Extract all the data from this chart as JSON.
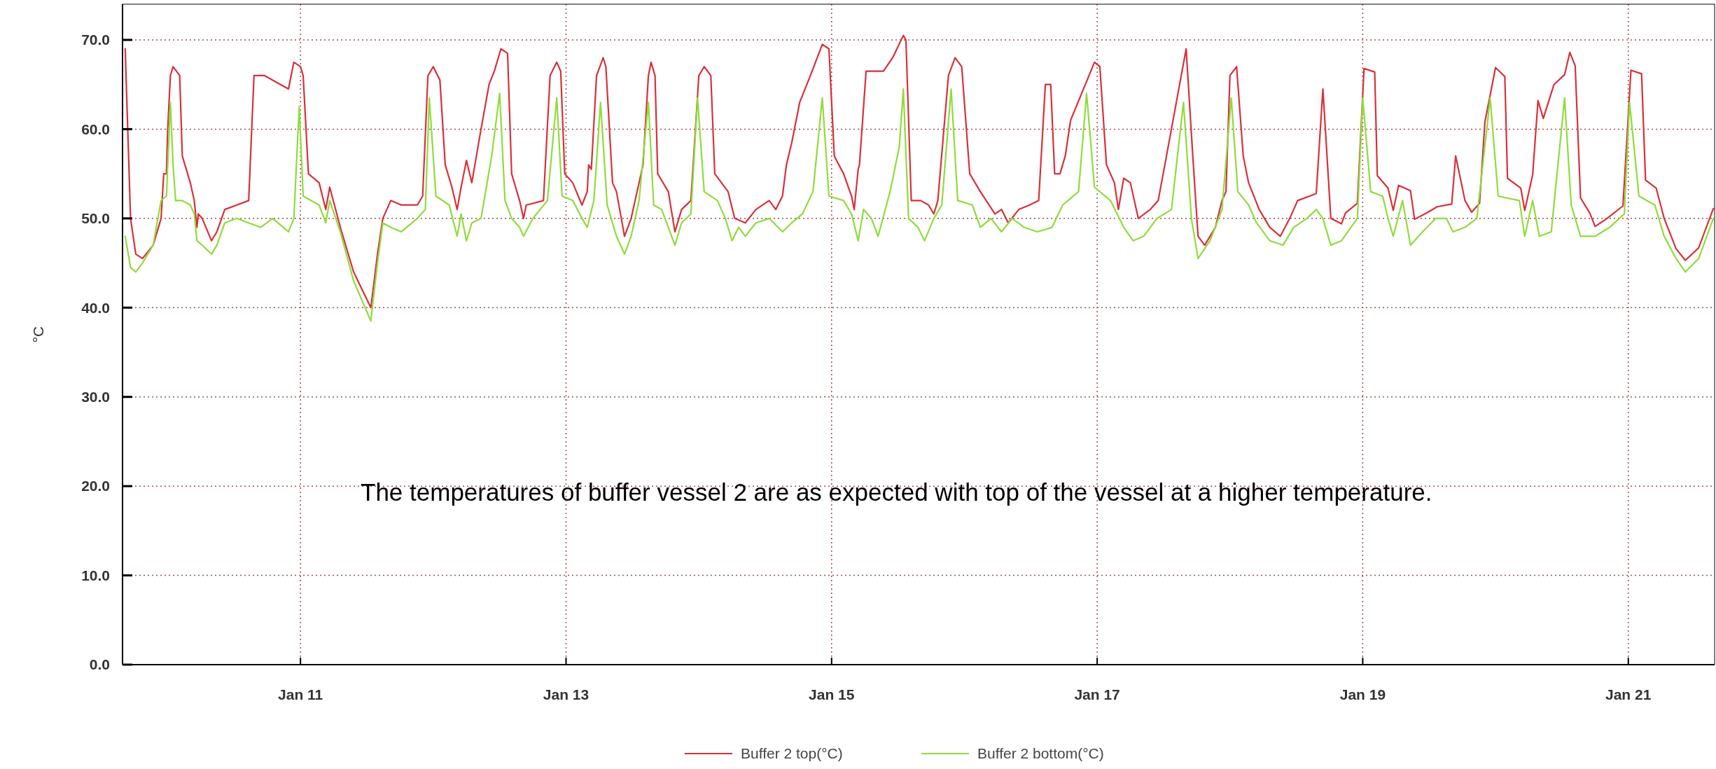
{
  "chart_data": {
    "type": "line",
    "ylabel": "°C",
    "xlim": [
      "--01-09T15:50",
      "--01-21T15:36"
    ],
    "ylim": [
      0,
      74
    ],
    "xticks": [
      {
        "value": "--01-11",
        "label": "Jan 11"
      },
      {
        "value": "--01-13",
        "label": "Jan 13"
      },
      {
        "value": "--01-15",
        "label": "Jan 15"
      },
      {
        "value": "--01-17",
        "label": "Jan 17"
      },
      {
        "value": "--01-19",
        "label": "Jan 19"
      },
      {
        "value": "--01-21",
        "label": "Jan 21"
      }
    ],
    "yticks": [
      {
        "value": 0,
        "label": "0.0"
      },
      {
        "value": 10,
        "label": "10.0"
      },
      {
        "value": 20,
        "label": "20.0"
      },
      {
        "value": 30,
        "label": "30.0"
      },
      {
        "value": 40,
        "label": "40.0"
      },
      {
        "value": 50,
        "label": "50.0"
      },
      {
        "value": 60,
        "label": "60.0"
      },
      {
        "value": 70,
        "label": "70.0"
      }
    ],
    "grid": true,
    "legend": "bottom",
    "line_style": "solid",
    "marker": "none",
    "annotations": [
      "The temperatures of buffer vessel 2 are as expected with top of the vessel at a higher temperature."
    ],
    "series": [
      {
        "name": "Buffer 2 top(°C)",
        "color": "#d9303a",
        "x": [
          "--01-09T16:19",
          "--01-09T17:17",
          "--01-09T18:14",
          "--01-09T19:26",
          "--01-09T21:22",
          "--01-09T22:48",
          "--01-09T23:17",
          "--01-09T23:46",
          "--01-10T00:00",
          "--01-10T00:29",
          "--01-10T00:58",
          "--01-10T02:10",
          "--01-10T02:38",
          "--01-10T04:05",
          "--01-10T04:48",
          "--01-10T05:17",
          "--01-10T05:31",
          "--01-10T06:14",
          "--01-10T07:55",
          "--01-10T08:53",
          "--01-10T10:19",
          "--01-10T12:29",
          "--01-10T14:38",
          "--01-10T15:36",
          "--01-10T17:31",
          "--01-10T20:24",
          "--01-10T21:50",
          "--01-10T22:48",
          "--01-11T00:00",
          "--01-11T00:29",
          "--01-11T01:26",
          "--01-11T03:22",
          "--01-11T04:34",
          "--01-11T05:17",
          "--01-11T07:12",
          "--01-11T09:36",
          "--01-11T12:43",
          "--01-11T13:55",
          "--01-11T14:53",
          "--01-11T16:19",
          "--01-11T18:14",
          "--01-11T21:07",
          "--01-11T22:05",
          "--01-11T23:02",
          "--01-12T00:00",
          "--01-12T01:12",
          "--01-12T02:10",
          "--01-12T03:22",
          "--01-12T04:19",
          "--01-12T05:02",
          "--01-12T06:00",
          "--01-12T06:58",
          "--01-12T08:38",
          "--01-12T10:05",
          "--01-12T11:02",
          "--01-12T12:14",
          "--01-12T13:26",
          "--01-12T14:10",
          "--01-12T15:36",
          "--01-12T16:19",
          "--01-12T16:48",
          "--01-12T19:55",
          "--01-12T21:07",
          "--01-12T22:19",
          "--01-12T23:02",
          "--01-12T23:46",
          "--01-13T01:12",
          "--01-13T02:53",
          "--01-13T03:50",
          "--01-13T04:05",
          "--01-13T04:34",
          "--01-13T05:31",
          "--01-13T06:43",
          "--01-13T07:12",
          "--01-13T08:24",
          "--01-13T09:07",
          "--01-13T10:34",
          "--01-13T11:46",
          "--01-13T13:12",
          "--01-13T13:55",
          "--01-13T14:53",
          "--01-13T15:22",
          "--01-13T16:05",
          "--01-13T16:34",
          "--01-13T18:29",
          "--01-13T19:41",
          "--01-13T20:53",
          "--01-13T22:34",
          "--01-14T00:00",
          "--01-14T00:58",
          "--01-14T02:10",
          "--01-14T02:53",
          "--01-14T05:17",
          "--01-14T06:29",
          "--01-14T08:24",
          "--01-14T10:19",
          "--01-14T12:43",
          "--01-14T13:55",
          "--01-14T15:07",
          "--01-14T15:50",
          "--01-14T16:48",
          "--01-14T18:14",
          "--01-14T20:10",
          "--01-14T22:19",
          "--01-14T23:31",
          "--01-15T00:29",
          "--01-15T02:10",
          "--01-15T03:36",
          "--01-15T04:05",
          "--01-15T04:48",
          "--01-15T05:02",
          "--01-15T06:14",
          "--01-15T09:22",
          "--01-15T11:02",
          "--01-15T12:58",
          "--01-15T13:26",
          "--01-15T14:24",
          "--01-15T16:05",
          "--01-15T17:31",
          "--01-15T18:29",
          "--01-15T19:12",
          "--01-15T21:07",
          "--01-15T22:19",
          "--01-15T23:31",
          "--01-16T00:58",
          "--01-16T02:53",
          "--01-16T05:31",
          "--01-16T06:43",
          "--01-16T07:55",
          "--01-16T09:50",
          "--01-16T11:46",
          "--01-16T13:26",
          "--01-16T14:38",
          "--01-16T15:36",
          "--01-16T16:19",
          "--01-16T17:17",
          "--01-16T18:14",
          "--01-16T19:12",
          "--01-16T23:31",
          "--01-17T00:29",
          "--01-17T01:41",
          "--01-17T03:07",
          "--01-17T03:50",
          "--01-17T04:48",
          "--01-17T06:00",
          "--01-17T07:26",
          "--01-17T09:36",
          "--01-17T11:02",
          "--01-17T12:14",
          "--01-17T16:05",
          "--01-17T17:17",
          "--01-17T18:14",
          "--01-17T19:26",
          "--01-17T21:22",
          "--01-17T22:34",
          "--01-17T23:17",
          "--01-18T00:00",
          "--01-18T01:12",
          "--01-18T02:24",
          "--01-18T03:22",
          "--01-18T05:17",
          "--01-18T07:12",
          "--01-18T09:07",
          "--01-18T10:48",
          "--01-18T12:14",
          "--01-18T14:24",
          "--01-18T15:36",
          "--01-18T16:48",
          "--01-18T18:14",
          "--01-18T20:10",
          "--01-18T20:53",
          "--01-18T23:02",
          "--01-19T00:14",
          "--01-19T02:10",
          "--01-19T02:38",
          "--01-19T04:34",
          "--01-19T05:31",
          "--01-19T06:29",
          "--01-19T08:38",
          "--01-19T09:22",
          "--01-19T11:31",
          "--01-19T13:26",
          "--01-19T16:05",
          "--01-19T16:48",
          "--01-19T18:29",
          "--01-19T19:41",
          "--01-19T21:07",
          "--01-19T22:05",
          "--01-20T00:00",
          "--01-20T01:41",
          "--01-20T02:10",
          "--01-20T04:34",
          "--01-20T05:17",
          "--01-20T06:43",
          "--01-20T07:41",
          "--01-20T08:38",
          "--01-20T10:34",
          "--01-20T12:29",
          "--01-20T13:26",
          "--01-20T14:24",
          "--01-20T15:22",
          "--01-20T17:02",
          "--01-20T18:00",
          "--01-20T20:10",
          "--01-20T23:02",
          "--01-21T00:29",
          "--01-21T02:24",
          "--01-21T03:07",
          "--01-21T05:02",
          "--01-21T06:29",
          "--01-21T08:38",
          "--01-21T10:19",
          "--01-21T12:43",
          "--01-21T15:22"
        ],
        "values": [
          69,
          50,
          46,
          45.5,
          47,
          50,
          55,
          55,
          60,
          66,
          67,
          66,
          57,
          54,
          52,
          49,
          50.5,
          50,
          47.5,
          48.5,
          51,
          51.5,
          52,
          66,
          66,
          65,
          64.5,
          67.5,
          67,
          66,
          55,
          54,
          51,
          53.5,
          49,
          44,
          40,
          46,
          50,
          52,
          51.5,
          51.5,
          52.5,
          66,
          67,
          65.5,
          56,
          53.5,
          51,
          53.5,
          56.5,
          54,
          60,
          65,
          66.5,
          69,
          68.5,
          55,
          52,
          50,
          51.5,
          52,
          66,
          67.5,
          66.5,
          55,
          54,
          51.5,
          53,
          56,
          55.5,
          66,
          68,
          67,
          54,
          53,
          48,
          50,
          54,
          56,
          66,
          67.5,
          66,
          55,
          53,
          48.5,
          51,
          52,
          66,
          67,
          66,
          55,
          53,
          50,
          49.5,
          51,
          52,
          51,
          52.5,
          56,
          58.5,
          63,
          66,
          69.5,
          69,
          57,
          55,
          52.5,
          51,
          55.5,
          56,
          66.5,
          66.5,
          68,
          70.5,
          70,
          52,
          52,
          51.5,
          50.5,
          52,
          66,
          68,
          67,
          55,
          53,
          50.5,
          51,
          49.5,
          51,
          51.5,
          52,
          65,
          65,
          55,
          55,
          57,
          61,
          67.5,
          67,
          56,
          54,
          51,
          54.5,
          54,
          50,
          51,
          52,
          56,
          69,
          57,
          48,
          47,
          49,
          52,
          53,
          66,
          67,
          57,
          54,
          51,
          49,
          48,
          50,
          52,
          52.5,
          52.8,
          64.5,
          50,
          49.4,
          50.6,
          51.7,
          66.8,
          66.4,
          54.8,
          53.4,
          50.9,
          53.7,
          53.1,
          49.9,
          50.6,
          51.3,
          51.6,
          57,
          52,
          50.7,
          51.7,
          60.8,
          66.9,
          65.9,
          54.5,
          53.4,
          50.9,
          54.9,
          63.2,
          61.2,
          65,
          66.1,
          68.6,
          67.1,
          52.3,
          50.6,
          49.1,
          50,
          51.4,
          66.6,
          66.2,
          54.3,
          53.4,
          50,
          46.6,
          45.3,
          46.7,
          51.1
        ]
      },
      {
        "name": "Buffer 2 bottom(°C)",
        "color": "#8fdc3c",
        "x": [
          "--01-09T16:19",
          "--01-09T17:17",
          "--01-09T18:14",
          "--01-09T19:26",
          "--01-09T21:22",
          "--01-09T22:48",
          "--01-09T23:46",
          "--01-10T00:29",
          "--01-10T00:58",
          "--01-10T01:26",
          "--01-10T02:38",
          "--01-10T04:05",
          "--01-10T04:48",
          "--01-10T05:17",
          "--01-10T06:14",
          "--01-10T07:55",
          "--01-10T08:53",
          "--01-10T10:19",
          "--01-10T12:29",
          "--01-10T14:38",
          "--01-10T16:48",
          "--01-10T18:58",
          "--01-10T21:50",
          "--01-10T22:48",
          "--01-10T23:46",
          "--01-11T00:29",
          "--01-11T03:22",
          "--01-11T04:34",
          "--01-11T05:17",
          "--01-11T07:12",
          "--01-11T09:36",
          "--01-11T12:43",
          "--01-11T13:55",
          "--01-11T14:53",
          "--01-11T16:19",
          "--01-11T18:14",
          "--01-11T21:07",
          "--01-11T22:34",
          "--01-11T23:17",
          "--01-12T00:29",
          "--01-12T02:53",
          "--01-12T04:19",
          "--01-12T05:02",
          "--01-12T06:00",
          "--01-12T06:58",
          "--01-12T08:38",
          "--01-12T10:34",
          "--01-12T12:00",
          "--01-12T12:58",
          "--01-12T14:10",
          "--01-12T15:36",
          "--01-12T16:19",
          "--01-12T18:00",
          "--01-12T20:38",
          "--01-12T22:19",
          "--01-12T23:17",
          "--01-13T01:12",
          "--01-13T02:53",
          "--01-13T03:50",
          "--01-13T05:02",
          "--01-13T06:14",
          "--01-13T07:26",
          "--01-13T09:07",
          "--01-13T10:34",
          "--01-13T11:46",
          "--01-13T13:12",
          "--01-13T14:53",
          "--01-13T15:50",
          "--01-13T17:17",
          "--01-13T19:41",
          "--01-13T20:53",
          "--01-13T22:34",
          "--01-13T23:46",
          "--01-14T00:58",
          "--01-14T03:22",
          "--01-14T04:48",
          "--01-14T06:00",
          "--01-14T07:12",
          "--01-14T08:24",
          "--01-14T10:19",
          "--01-14T12:43",
          "--01-14T15:07",
          "--01-14T16:48",
          "--01-14T18:43",
          "--01-14T20:38",
          "--01-14T22:19",
          "--01-14T23:31",
          "--01-15T02:10",
          "--01-15T03:36",
          "--01-15T04:48",
          "--01-15T05:46",
          "--01-15T07:12",
          "--01-15T08:24",
          "--01-15T10:34",
          "--01-15T12:14",
          "--01-15T12:58",
          "--01-15T13:55",
          "--01-15T15:36",
          "--01-15T16:48",
          "--01-15T18:29",
          "--01-15T19:55",
          "--01-15T21:36",
          "--01-15T22:48",
          "--01-16T01:26",
          "--01-16T02:53",
          "--01-16T04:48",
          "--01-16T06:43",
          "--01-16T08:38",
          "--01-16T10:48",
          "--01-16T13:12",
          "--01-16T15:50",
          "--01-16T17:46",
          "--01-16T20:38",
          "--01-16T22:05",
          "--01-16T23:31",
          "--01-17T02:24",
          "--01-17T04:48",
          "--01-17T06:29",
          "--01-17T08:24",
          "--01-17T10:48",
          "--01-17T13:26",
          "--01-17T15:36",
          "--01-17T17:02",
          "--01-17T18:14",
          "--01-17T20:24",
          "--01-17T22:34",
          "--01-18T00:14",
          "--01-18T01:26",
          "--01-18T03:22",
          "--01-18T04:48",
          "--01-18T07:12",
          "--01-18T09:36",
          "--01-18T11:31",
          "--01-18T13:55",
          "--01-18T15:36",
          "--01-18T16:48",
          "--01-18T18:14",
          "--01-18T20:10",
          "--01-18T23:02",
          "--01-19T00:00",
          "--01-19T01:26",
          "--01-19T03:36",
          "--01-19T04:34",
          "--01-19T05:31",
          "--01-19T07:12",
          "--01-19T08:38",
          "--01-19T10:48",
          "--01-19T13:12",
          "--01-19T15:07",
          "--01-19T16:19",
          "--01-19T18:29",
          "--01-19T20:38",
          "--01-19T23:02",
          "--01-20T00:29",
          "--01-20T04:19",
          "--01-20T05:17",
          "--01-20T06:43",
          "--01-20T07:55",
          "--01-20T10:05",
          "--01-20T12:29",
          "--01-20T13:41",
          "--01-20T14:24",
          "--01-20T15:22",
          "--01-20T18:00",
          "--01-20T20:38",
          "--01-20T23:17",
          "--01-21T00:14",
          "--01-21T01:55",
          "--01-21T04:48",
          "--01-21T06:29",
          "--01-21T08:38",
          "--01-21T10:19",
          "--01-21T12:43",
          "--01-21T15:22"
        ],
        "values": [
          48,
          44.5,
          44,
          45,
          47,
          52,
          52.5,
          63,
          56,
          52,
          52,
          51.5,
          50.5,
          47.5,
          47,
          46,
          47,
          49.5,
          50,
          49.5,
          49,
          50,
          48.5,
          50,
          62.5,
          52.5,
          51.5,
          49.5,
          52,
          48.5,
          43,
          38.5,
          45,
          49.5,
          49,
          48.5,
          50,
          51,
          63.5,
          52.5,
          51.5,
          48,
          50.5,
          47.5,
          49.5,
          50,
          57,
          64,
          52,
          50,
          49,
          48,
          50,
          52,
          63.5,
          52.5,
          52,
          50,
          49,
          52,
          63,
          51.5,
          48,
          46,
          48,
          52,
          63,
          51.5,
          51,
          47,
          49.5,
          50.5,
          63.5,
          53,
          52,
          50,
          47.5,
          49,
          48,
          49.5,
          50,
          48.5,
          49.5,
          50.5,
          53,
          63.5,
          52.5,
          52,
          50.5,
          47.5,
          51,
          50,
          48,
          53,
          58,
          64.5,
          50,
          49,
          47.5,
          50,
          51.5,
          64.5,
          52,
          51.5,
          49,
          50,
          48.5,
          50,
          49,
          48.5,
          49,
          51.5,
          53,
          64,
          53.5,
          52,
          49,
          47.5,
          48,
          50,
          51,
          63,
          50,
          45.5,
          47.5,
          51,
          63.5,
          53,
          51.5,
          49.5,
          47.5,
          47,
          49,
          50,
          51,
          50,
          47,
          47.5,
          50,
          63.5,
          53,
          52.5,
          50,
          48,
          52,
          47,
          48.5,
          50,
          50,
          48.5,
          49,
          50,
          63.5,
          52.5,
          52,
          48,
          52,
          48,
          48.5,
          63.5,
          51.5,
          50,
          48,
          48,
          49,
          50.5,
          63,
          52.5,
          51.5,
          48,
          45.5,
          44,
          45.5,
          50
        ]
      }
    ]
  }
}
